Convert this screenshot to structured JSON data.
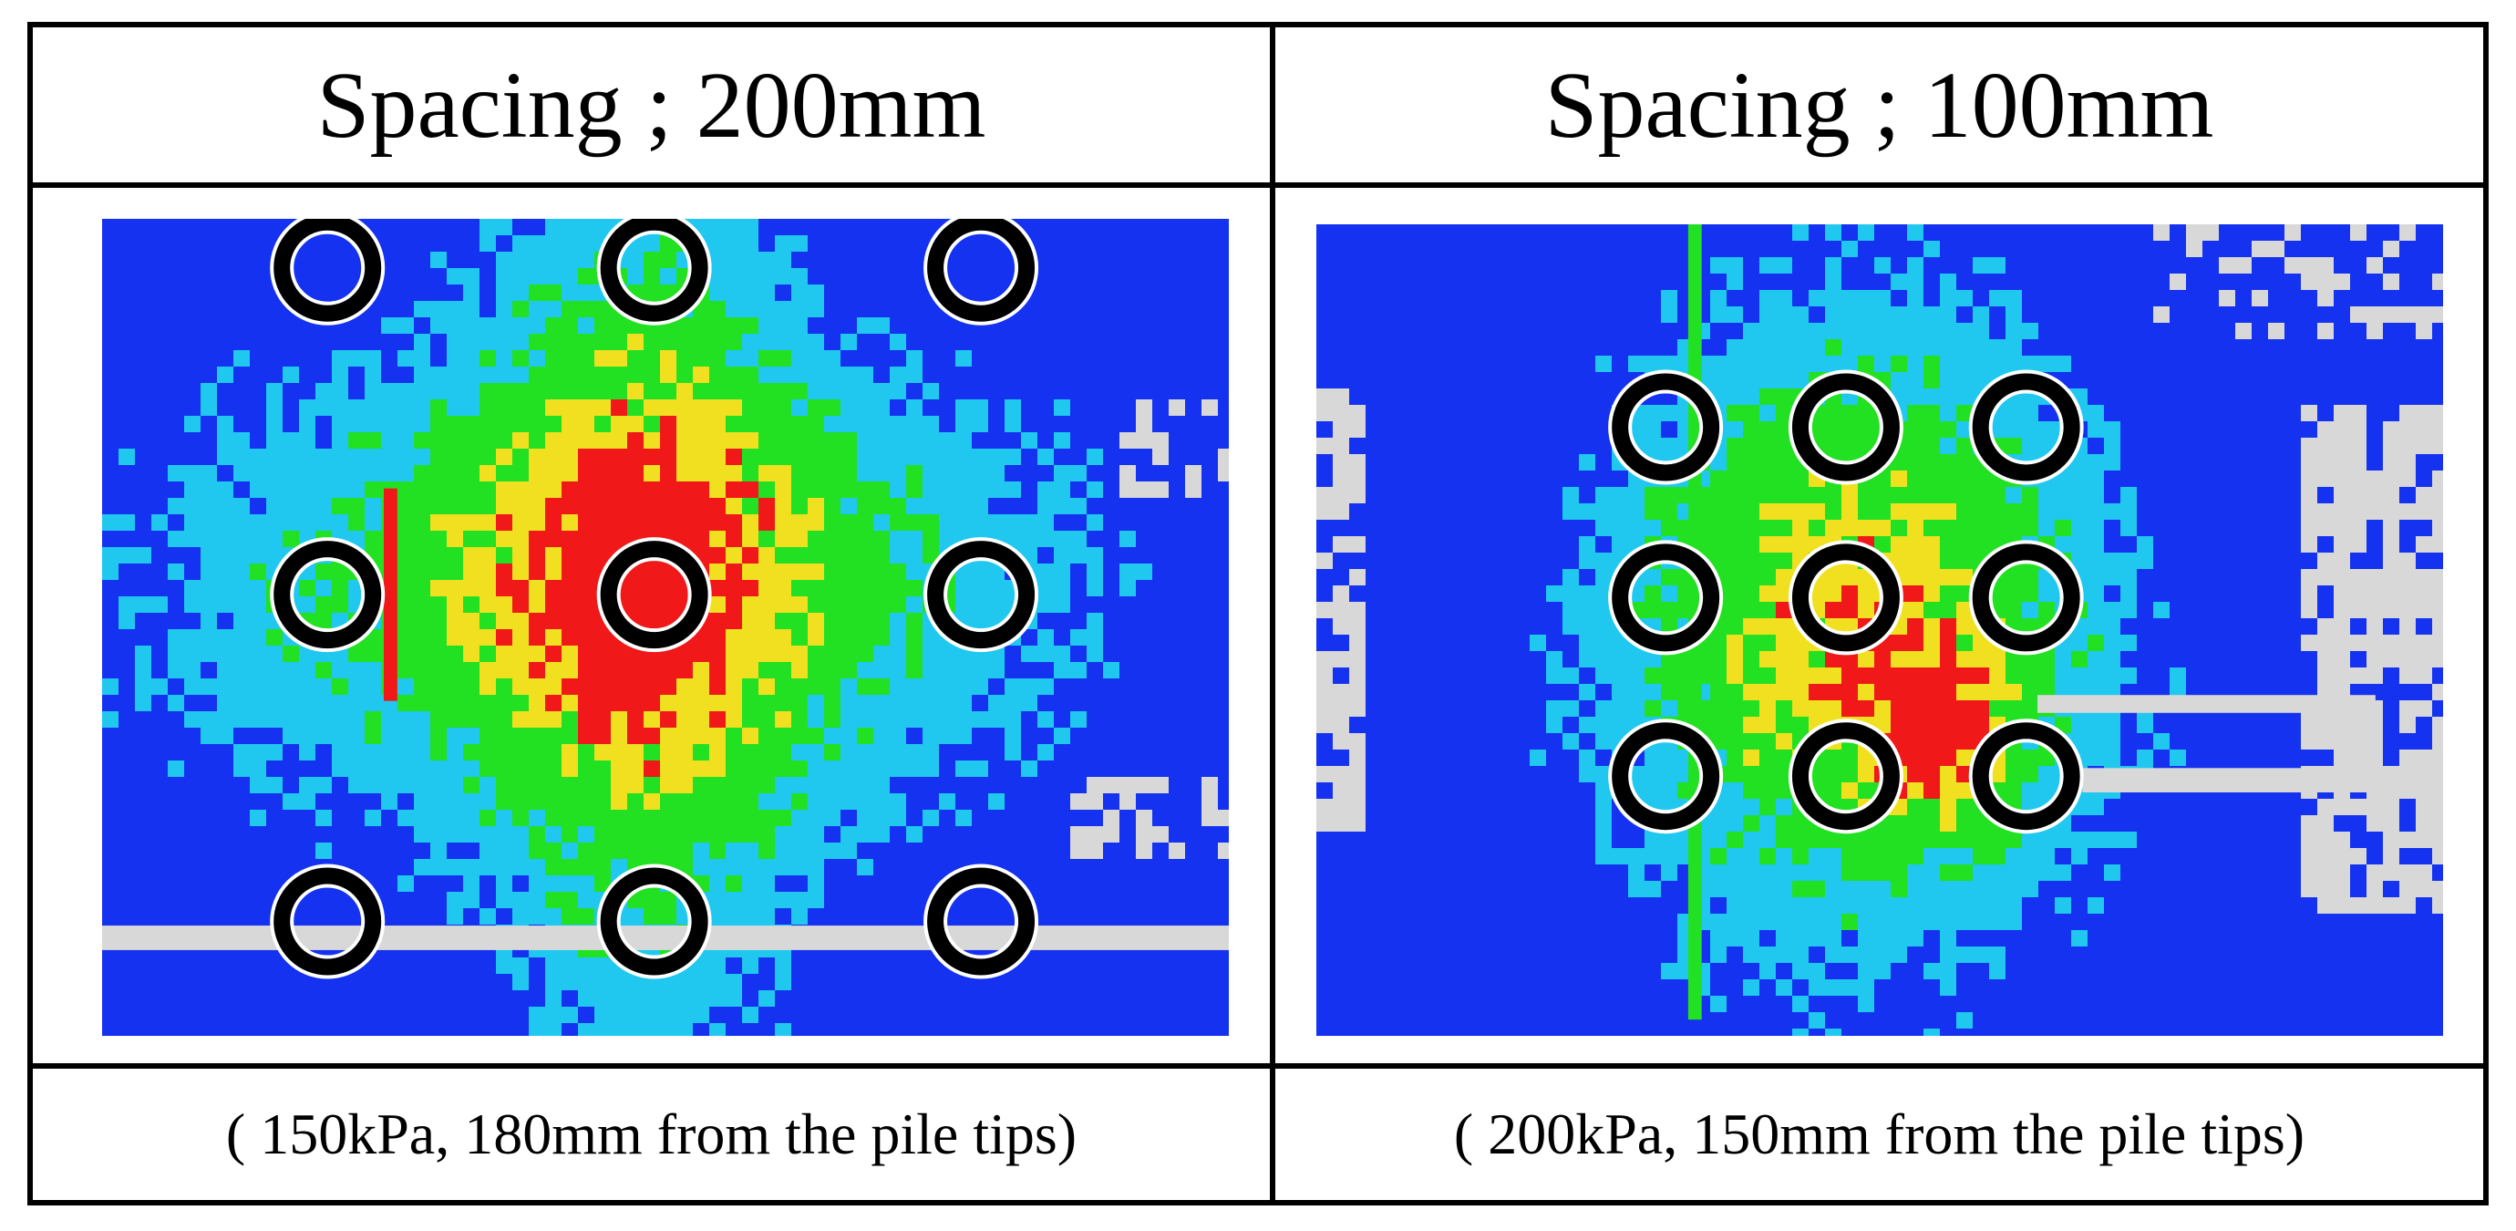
{
  "panels": [
    {
      "title": "Spacing ; 200mm",
      "caption": "( 150kPa, 180mm from the pile tips)",
      "pile_grid": {
        "columns": 3,
        "rows": 3
      },
      "colors": {
        "low": "#1432f0",
        "mid_low": "#20c8f0",
        "mid": "#22e022",
        "high": "#f0e020",
        "peak": "#f01818",
        "void": "#d8d8d8"
      }
    },
    {
      "title": "Spacing ; 100mm",
      "caption": "( 200kPa, 150mm from the pile tips)",
      "pile_grid": {
        "columns": 3,
        "rows": 3
      },
      "colors": {
        "low": "#1432f0",
        "mid_low": "#20c8f0",
        "mid": "#22e022",
        "high": "#f0e020",
        "peak": "#f01818",
        "void": "#d8d8d8"
      }
    }
  ]
}
